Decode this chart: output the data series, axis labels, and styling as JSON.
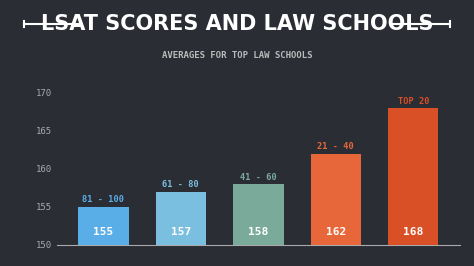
{
  "title": "LSAT SCORES AND LAW SCHOOLS",
  "subtitle": "AVERAGES FOR TOP LAW SCHOOLS",
  "categories": [
    "81 - 100",
    "61 - 80",
    "41 - 60",
    "21 - 40",
    "TOP 20"
  ],
  "values": [
    155,
    157,
    158,
    162,
    168
  ],
  "bar_colors": [
    "#5aaee8",
    "#7bbfe0",
    "#7aab9a",
    "#e8673a",
    "#d94f26"
  ],
  "label_colors": [
    "#5aaee8",
    "#7bbfe0",
    "#7aab9a",
    "#e8673a",
    "#d94f26"
  ],
  "background_color": "#2b2d35",
  "text_color": "#ffffff",
  "ylim": [
    150,
    171
  ],
  "yticks": [
    150,
    155,
    160,
    165,
    170
  ],
  "title_color": "#ffffff",
  "subtitle_color": "#bbbbbb",
  "title_fontsize": 15,
  "subtitle_fontsize": 6.5,
  "tick_color": "#aaaaaa",
  "bar_width": 0.65,
  "title_line_color": "#ffffff"
}
